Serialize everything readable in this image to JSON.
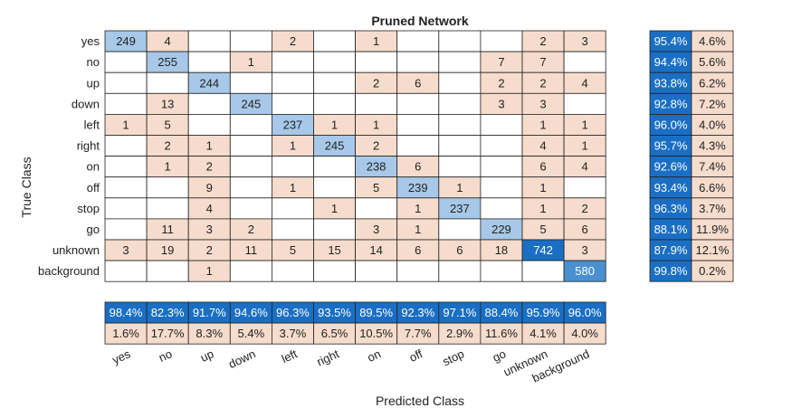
{
  "chart_data": {
    "type": "heatmap",
    "title": "Pruned Network",
    "xlabel": "Predicted Class",
    "ylabel": "True Class",
    "classes": [
      "yes",
      "no",
      "up",
      "down",
      "left",
      "right",
      "on",
      "off",
      "stop",
      "go",
      "unknown",
      "background"
    ],
    "matrix": [
      [
        249,
        4,
        null,
        null,
        2,
        null,
        1,
        null,
        null,
        null,
        2,
        3
      ],
      [
        null,
        255,
        null,
        1,
        null,
        null,
        null,
        null,
        null,
        7,
        7,
        null
      ],
      [
        null,
        null,
        244,
        null,
        null,
        null,
        2,
        6,
        null,
        2,
        2,
        4
      ],
      [
        null,
        13,
        null,
        245,
        null,
        null,
        null,
        null,
        null,
        3,
        3,
        null
      ],
      [
        1,
        5,
        null,
        null,
        237,
        1,
        1,
        null,
        null,
        null,
        1,
        1
      ],
      [
        null,
        2,
        1,
        null,
        1,
        245,
        2,
        null,
        null,
        null,
        4,
        1
      ],
      [
        null,
        1,
        2,
        null,
        null,
        null,
        238,
        6,
        null,
        null,
        6,
        4
      ],
      [
        null,
        null,
        9,
        null,
        1,
        null,
        5,
        239,
        1,
        null,
        1,
        null
      ],
      [
        null,
        null,
        4,
        null,
        null,
        1,
        null,
        1,
        237,
        null,
        1,
        2
      ],
      [
        null,
        11,
        3,
        2,
        null,
        null,
        3,
        1,
        null,
        229,
        5,
        6
      ],
      [
        3,
        19,
        2,
        11,
        5,
        15,
        14,
        6,
        6,
        18,
        742,
        3
      ],
      [
        null,
        null,
        1,
        null,
        null,
        null,
        null,
        null,
        null,
        null,
        null,
        580
      ]
    ],
    "row_summary": {
      "correct": [
        "95.4%",
        "94.4%",
        "93.8%",
        "92.8%",
        "96.0%",
        "95.7%",
        "92.6%",
        "93.4%",
        "96.3%",
        "88.1%",
        "87.9%",
        "99.8%"
      ],
      "incorrect": [
        "4.6%",
        "5.6%",
        "6.2%",
        "7.2%",
        "4.0%",
        "4.3%",
        "7.4%",
        "6.6%",
        "3.7%",
        "11.9%",
        "12.1%",
        "0.2%"
      ]
    },
    "column_summary": {
      "correct": [
        "98.4%",
        "82.3%",
        "91.7%",
        "94.6%",
        "96.3%",
        "93.5%",
        "89.5%",
        "92.3%",
        "97.1%",
        "88.4%",
        "95.9%",
        "96.0%"
      ],
      "incorrect": [
        "1.6%",
        "17.7%",
        "8.3%",
        "5.4%",
        "3.7%",
        "6.5%",
        "10.5%",
        "7.7%",
        "2.9%",
        "11.6%",
        "4.1%",
        "4.0%"
      ]
    }
  },
  "colors": {
    "diag_light": "#a7c8e8",
    "diag_dark": "#1a6fc4",
    "offdiag": "#f6dccc",
    "summary_correct": "#1a6fc4",
    "summary_incorrect": "#f6dccc",
    "grid": "#222222"
  }
}
